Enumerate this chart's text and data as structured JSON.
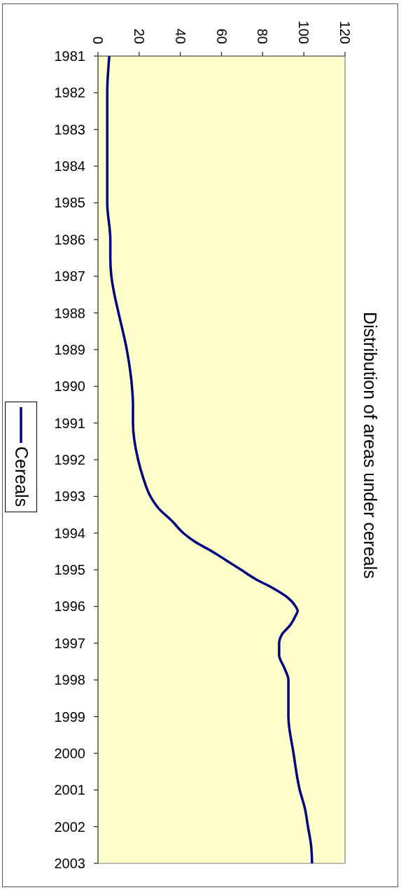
{
  "chart_data": {
    "type": "line",
    "title": "Distribution of areas under cereals",
    "series": [
      {
        "name": "Cereals",
        "color": "#000080",
        "x": [
          5.5,
          4.5,
          4.5,
          6,
          6,
          6.5,
          8,
          10,
          14,
          16.5,
          17,
          17,
          19.5,
          22,
          25.5,
          29.5,
          36,
          41.5,
          47.5,
          55.5,
          62.5,
          69.5,
          76.5,
          85,
          92,
          96,
          97,
          96,
          93.5,
          89.5,
          88,
          88,
          90.5,
          92.5,
          92.5,
          95,
          98,
          100.5,
          102,
          103.5,
          104
        ],
        "values": [
          1981,
          1982,
          1985,
          1986,
          1986.5,
          1987,
          1987.5,
          1988,
          1989,
          1990,
          1990.5,
          1991,
          1992,
          1992.5,
          1993,
          1993.33,
          1993.67,
          1994,
          1994.25,
          1994.5,
          1994.75,
          1995,
          1995.25,
          1995.5,
          1995.75,
          1996,
          1996.12,
          1996.25,
          1996.5,
          1996.75,
          1997,
          1997.33,
          1997.67,
          1998,
          1999,
          2000,
          2001,
          2001.5,
          2002,
          2002.5,
          2003
        ]
      }
    ],
    "xlim": [
      0,
      120
    ],
    "xticks": [
      0,
      20,
      40,
      60,
      80,
      100,
      120
    ],
    "ylim": [
      2003,
      1981
    ],
    "yticks": [
      1981,
      1982,
      1983,
      1984,
      1985,
      1986,
      1987,
      1988,
      1989,
      1990,
      1991,
      1992,
      1993,
      1994,
      1995,
      1996,
      1997,
      1998,
      1999,
      2000,
      2001,
      2002,
      2003
    ],
    "legend": "left"
  }
}
